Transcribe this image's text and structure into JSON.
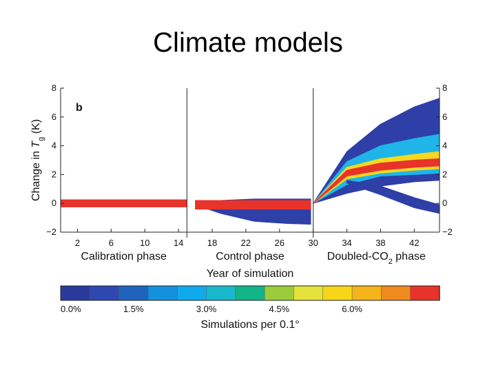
{
  "slide": {
    "title": "Climate models"
  },
  "chart_data": {
    "type": "heatmap",
    "panel_label": "b",
    "ylabel": "Change in Tg (K)",
    "ylabel_parts": {
      "prefix": "Change in ",
      "var": "T",
      "sub": "g",
      "suffix": " (K)"
    },
    "ylim": [
      -2,
      8
    ],
    "y_ticks": [
      "−2",
      "0",
      "2",
      "4",
      "6",
      "8"
    ],
    "y_tick_values": [
      -2,
      0,
      2,
      4,
      6,
      8
    ],
    "xlim": [
      0,
      45
    ],
    "x_ticks": [
      "2",
      "6",
      "10",
      "14",
      "18",
      "22",
      "26",
      "30",
      "34",
      "38",
      "42"
    ],
    "x_tick_values": [
      2,
      6,
      10,
      14,
      18,
      22,
      26,
      30,
      34,
      38,
      42
    ],
    "xlabel": "Year of simulation",
    "phases": [
      {
        "name": "Calibration phase",
        "start": 0,
        "end": 15
      },
      {
        "name": "Control phase",
        "start": 15,
        "end": 30
      },
      {
        "name": "Doubled-CO2 phase",
        "name_parts": {
          "prefix": "Doubled-CO",
          "sub": "2",
          "suffix": " phase"
        },
        "start": 30,
        "end": 45
      }
    ],
    "series": [
      {
        "name": "calibration-dense",
        "color": "#e8332a",
        "x": [
          0,
          15
        ],
        "lower": [
          -0.25,
          -0.25
        ],
        "upper": [
          0.25,
          0.25
        ]
      },
      {
        "name": "control-spread",
        "color": "#2e3fa8",
        "x": [
          17,
          19,
          23,
          27,
          29.7
        ],
        "lower": [
          -0.3,
          -0.7,
          -1.25,
          -1.4,
          -1.45
        ],
        "upper": [
          0.1,
          0.2,
          0.3,
          0.3,
          0.3
        ]
      },
      {
        "name": "control-dense",
        "color": "#e8332a",
        "x": [
          16,
          29.7
        ],
        "lower": [
          -0.4,
          -0.4
        ],
        "upper": [
          0.2,
          0.2
        ]
      },
      {
        "name": "doubled-co2-outer",
        "color": "#2e3fa8",
        "x": [
          30,
          34,
          38,
          42,
          45
        ],
        "lower": [
          0,
          0.7,
          1.2,
          1.5,
          1.6
        ],
        "upper": [
          0,
          3.6,
          5.5,
          6.7,
          7.3
        ]
      },
      {
        "name": "doubled-co2-mid",
        "color": "#1fb5e8",
        "x": [
          30,
          34,
          38,
          42,
          45
        ],
        "lower": [
          0,
          1.3,
          1.9,
          2.0,
          2.1
        ],
        "upper": [
          0,
          2.9,
          4.0,
          4.5,
          4.8
        ]
      },
      {
        "name": "doubled-co2-core",
        "color": "#f5d820",
        "x": [
          30,
          34,
          38,
          42,
          45
        ],
        "lower": [
          0,
          1.7,
          2.1,
          2.3,
          2.4
        ],
        "upper": [
          0,
          2.5,
          3.1,
          3.4,
          3.6
        ]
      },
      {
        "name": "doubled-co2-dense",
        "color": "#e8332a",
        "x": [
          30,
          34,
          38,
          42,
          45
        ],
        "lower": [
          0,
          1.9,
          2.3,
          2.5,
          2.6
        ],
        "upper": [
          0,
          2.3,
          2.8,
          3.0,
          3.1
        ]
      },
      {
        "name": "doubled-co2-outliers",
        "color": "#2e3fa8",
        "x": [
          34,
          38,
          42,
          45
        ],
        "lower": [
          1.4,
          0.6,
          -0.3,
          -0.7
        ],
        "upper": [
          1.6,
          1.2,
          0.4,
          -0.1
        ]
      }
    ],
    "colorbar": {
      "label": "Simulations per 0.1°",
      "colors": [
        "#2a3a9c",
        "#2e48b0",
        "#1e64bc",
        "#1590dc",
        "#10aaec",
        "#18b8cc",
        "#12b488",
        "#9ccc3c",
        "#e6e23c",
        "#f7d61a",
        "#f4b41a",
        "#ef8a1e",
        "#e8332a"
      ],
      "tick_labels": [
        "0.0%",
        "1.5%",
        "3.0%",
        "4.5%",
        "6.0%"
      ],
      "tick_values": [
        0,
        1.5,
        3.0,
        4.5,
        6.0
      ],
      "range": [
        0,
        7.8
      ]
    }
  }
}
